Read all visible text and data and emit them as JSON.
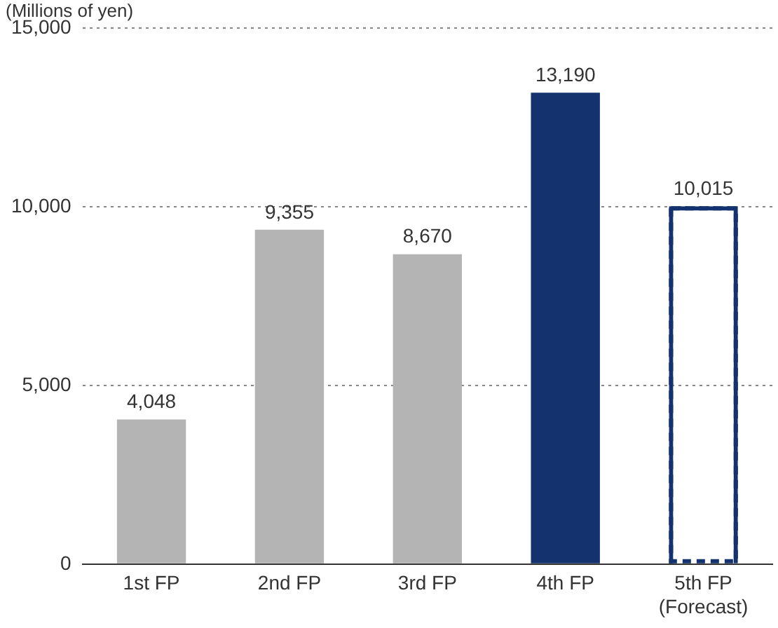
{
  "chart_data": {
    "type": "bar",
    "ylabel": "(Millions of yen)",
    "categories": [
      "1st FP",
      "2nd FP",
      "3rd FP",
      "4th FP",
      "5th FP\n(Forecast)"
    ],
    "series": [
      {
        "colors": [
          "#b4b4b4",
          "#b4b4b4",
          "#b4b4b4",
          "#14336e",
          null
        ],
        "values": [
          4048,
          9355,
          8670,
          13190,
          null
        ],
        "value_labels": [
          "4,048",
          "9,355",
          "8,670",
          "13,190",
          null
        ]
      },
      {
        "color": "#14336e",
        "line_style": "dashed",
        "values": [
          null,
          null,
          null,
          null,
          10015
        ],
        "value_labels": [
          null,
          null,
          null,
          null,
          "10,015"
        ]
      }
    ],
    "ylim": [
      0,
      15000
    ],
    "yticks": [
      {
        "value": 0,
        "label": "0"
      },
      {
        "value": 5000,
        "label": "5,000"
      },
      {
        "value": 10000,
        "label": "10,000"
      },
      {
        "value": 15000,
        "label": "15,000"
      }
    ],
    "grid": "y",
    "legend": false
  }
}
